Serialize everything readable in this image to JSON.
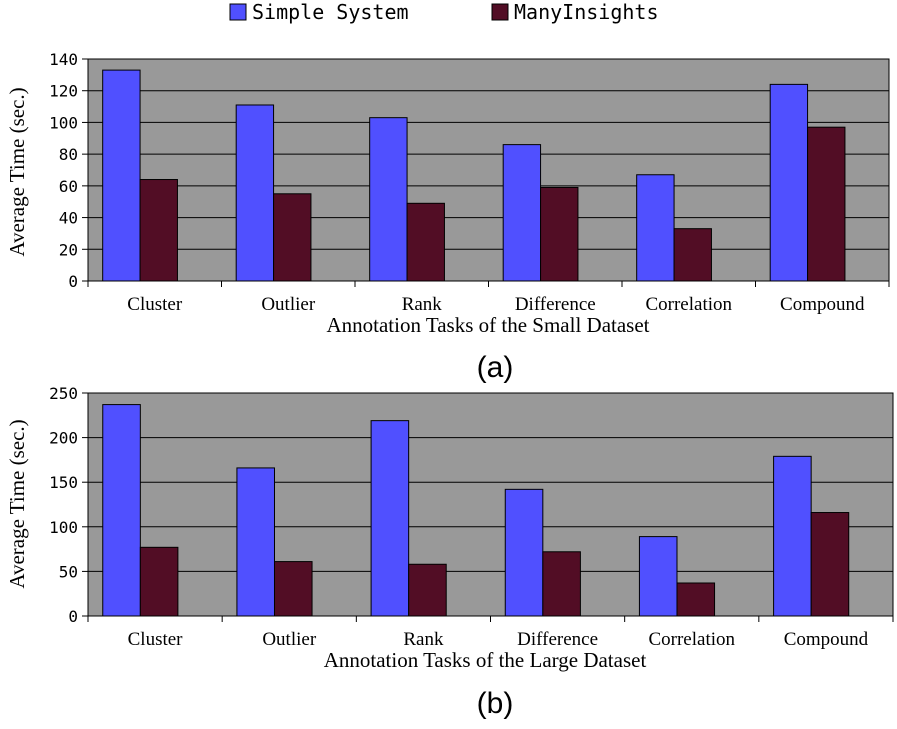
{
  "legend": [
    {
      "label": "Simple System",
      "color": "#5050ff"
    },
    {
      "label": "ManyInsights",
      "color": "#520d25"
    }
  ],
  "plot_background": "#999999",
  "chart_data": [
    {
      "type": "bar",
      "panel_label": "(a)",
      "categories": [
        "Cluster",
        "Outlier",
        "Rank",
        "Difference",
        "Correlation",
        "Compound"
      ],
      "series": [
        {
          "name": "Simple System",
          "values": [
            133,
            111,
            103,
            86,
            67,
            124
          ]
        },
        {
          "name": "ManyInsights",
          "values": [
            64,
            55,
            49,
            59,
            33,
            97
          ]
        }
      ],
      "xlabel": "Annotation Tasks of the Small Dataset",
      "ylabel": "Average Time (sec.)",
      "ylim": [
        0,
        140
      ],
      "yticks": [
        0,
        20,
        40,
        60,
        80,
        100,
        120,
        140
      ],
      "grid": true
    },
    {
      "type": "bar",
      "panel_label": "(b)",
      "categories": [
        "Cluster",
        "Outlier",
        "Rank",
        "Difference",
        "Correlation",
        "Compound"
      ],
      "series": [
        {
          "name": "Simple System",
          "values": [
            237,
            166,
            219,
            142,
            89,
            179
          ]
        },
        {
          "name": "ManyInsights",
          "values": [
            77,
            61,
            58,
            72,
            37,
            116
          ]
        }
      ],
      "xlabel": "Annotation Tasks of the Large Dataset",
      "ylabel": "Average Time (sec.)",
      "ylim": [
        0,
        250
      ],
      "yticks": [
        0,
        50,
        100,
        150,
        200,
        250
      ],
      "grid": true
    }
  ]
}
